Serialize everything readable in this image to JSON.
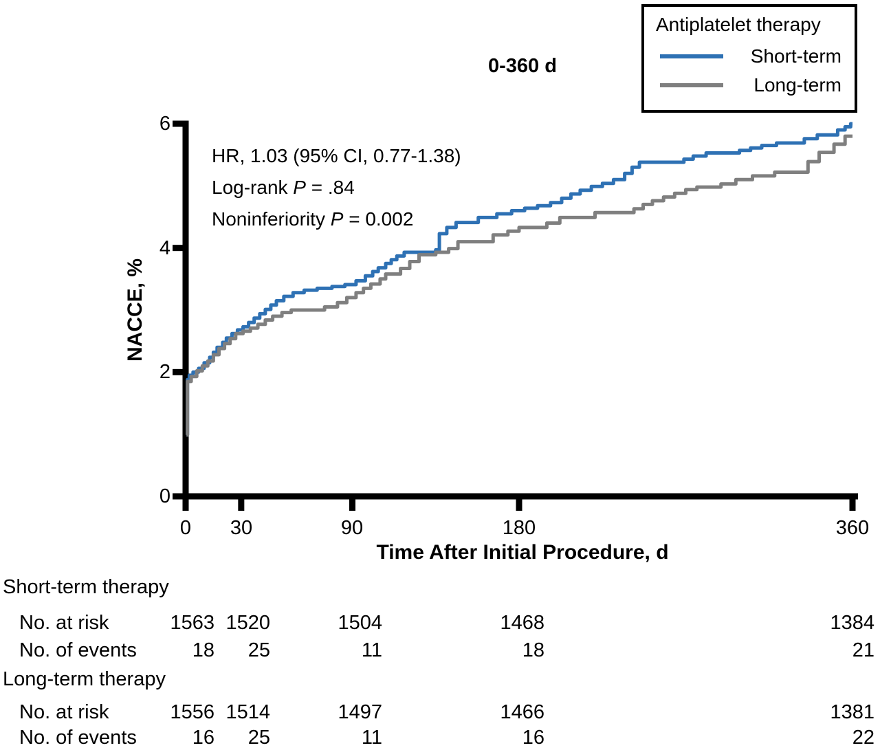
{
  "title_label": "0-360 d",
  "legend": {
    "title": "Antiplatelet therapy"
  },
  "annotation": {
    "line1": "HR, 1.03 (95% CI, 0.77-1.38)",
    "line2_prefix": "Log-rank ",
    "line2_italic": "P",
    "line2_suffix": " = .84",
    "line3_prefix": "Noninferiority ",
    "line3_italic": "P",
    "line3_suffix": " = 0.002"
  },
  "chart_data": {
    "type": "line",
    "subtype": "kaplan-meier-step",
    "title": "0-360 d",
    "xlabel": "Time After Initial Procedure, d",
    "ylabel": "NACCE, %",
    "xlim": [
      0,
      360
    ],
    "ylim": [
      0,
      6
    ],
    "xticks": [
      0,
      30,
      90,
      180,
      360
    ],
    "yticks": [
      0,
      2,
      4,
      6
    ],
    "grid": false,
    "legend_position": "top-right",
    "annotations": [
      "HR, 1.03 (95% CI, 0.77-1.38)",
      "Log-rank P = .84",
      "Noninferiority P = 0.002"
    ],
    "series": [
      {
        "name": "Short-term",
        "color": "#2e71b4",
        "step": true,
        "points": [
          [
            0.5,
            0.99
          ],
          [
            1,
            1.88
          ],
          [
            2,
            1.95
          ],
          [
            4,
            2.0
          ],
          [
            7,
            2.06
          ],
          [
            10,
            2.15
          ],
          [
            13,
            2.24
          ],
          [
            15,
            2.32
          ],
          [
            17,
            2.4
          ],
          [
            20,
            2.48
          ],
          [
            22,
            2.55
          ],
          [
            25,
            2.62
          ],
          [
            28,
            2.68
          ],
          [
            31,
            2.73
          ],
          [
            34,
            2.8
          ],
          [
            37,
            2.87
          ],
          [
            40,
            2.94
          ],
          [
            43,
            3.01
          ],
          [
            46,
            3.08
          ],
          [
            49,
            3.15
          ],
          [
            53,
            3.22
          ],
          [
            58,
            3.28
          ],
          [
            64,
            3.32
          ],
          [
            71,
            3.35
          ],
          [
            79,
            3.38
          ],
          [
            86,
            3.41
          ],
          [
            92,
            3.47
          ],
          [
            97,
            3.55
          ],
          [
            101,
            3.62
          ],
          [
            104,
            3.68
          ],
          [
            108,
            3.75
          ],
          [
            111,
            3.81
          ],
          [
            114,
            3.87
          ],
          [
            118,
            3.93
          ],
          [
            135,
            3.97
          ],
          [
            137,
            4.23
          ],
          [
            141,
            4.33
          ],
          [
            146,
            4.41
          ],
          [
            158,
            4.49
          ],
          [
            168,
            4.55
          ],
          [
            176,
            4.6
          ],
          [
            183,
            4.64
          ],
          [
            190,
            4.68
          ],
          [
            197,
            4.73
          ],
          [
            203,
            4.8
          ],
          [
            208,
            4.87
          ],
          [
            213,
            4.93
          ],
          [
            219,
            4.99
          ],
          [
            225,
            5.04
          ],
          [
            231,
            5.1
          ],
          [
            237,
            5.2
          ],
          [
            241,
            5.3
          ],
          [
            245,
            5.38
          ],
          [
            269,
            5.43
          ],
          [
            274,
            5.48
          ],
          [
            281,
            5.53
          ],
          [
            299,
            5.57
          ],
          [
            305,
            5.61
          ],
          [
            311,
            5.65
          ],
          [
            319,
            5.69
          ],
          [
            334,
            5.76
          ],
          [
            341,
            5.82
          ],
          [
            352,
            5.9
          ],
          [
            356,
            5.95
          ],
          [
            359,
            6.0
          ],
          [
            360,
            6.0
          ]
        ]
      },
      {
        "name": "Long-term",
        "color": "#7f7f7f",
        "step": true,
        "points": [
          [
            0.5,
            0.99
          ],
          [
            1,
            1.85
          ],
          [
            3,
            1.93
          ],
          [
            6,
            2.02
          ],
          [
            9,
            2.1
          ],
          [
            12,
            2.18
          ],
          [
            15,
            2.28
          ],
          [
            18,
            2.38
          ],
          [
            21,
            2.46
          ],
          [
            24,
            2.54
          ],
          [
            27,
            2.62
          ],
          [
            31,
            2.66
          ],
          [
            35,
            2.71
          ],
          [
            39,
            2.77
          ],
          [
            43,
            2.84
          ],
          [
            47,
            2.9
          ],
          [
            52,
            2.96
          ],
          [
            57,
            3.0
          ],
          [
            75,
            3.05
          ],
          [
            82,
            3.12
          ],
          [
            87,
            3.2
          ],
          [
            92,
            3.28
          ],
          [
            96,
            3.35
          ],
          [
            100,
            3.42
          ],
          [
            105,
            3.5
          ],
          [
            108,
            3.58
          ],
          [
            116,
            3.67
          ],
          [
            121,
            3.78
          ],
          [
            126,
            3.89
          ],
          [
            135,
            3.93
          ],
          [
            142,
            3.99
          ],
          [
            147,
            4.1
          ],
          [
            166,
            4.21
          ],
          [
            174,
            4.27
          ],
          [
            180,
            4.33
          ],
          [
            195,
            4.4
          ],
          [
            202,
            4.49
          ],
          [
            221,
            4.57
          ],
          [
            242,
            4.63
          ],
          [
            247,
            4.7
          ],
          [
            252,
            4.76
          ],
          [
            258,
            4.82
          ],
          [
            264,
            4.88
          ],
          [
            270,
            4.94
          ],
          [
            276,
            4.98
          ],
          [
            289,
            5.03
          ],
          [
            297,
            5.1
          ],
          [
            306,
            5.16
          ],
          [
            318,
            5.22
          ],
          [
            336,
            5.39
          ],
          [
            342,
            5.54
          ],
          [
            350,
            5.67
          ],
          [
            356,
            5.8
          ],
          [
            360,
            5.8
          ]
        ]
      }
    ]
  },
  "risk_table": {
    "groups": [
      {
        "label": "Short-term therapy",
        "rows": [
          {
            "label": "No. at risk",
            "values": [
              "1563",
              "1520",
              "1504",
              "1468",
              "1384"
            ]
          },
          {
            "label": "No. of events",
            "values": [
              "18",
              "25",
              "11",
              "18",
              "21"
            ]
          }
        ]
      },
      {
        "label": "Long-term therapy",
        "rows": [
          {
            "label": "No. at risk",
            "values": [
              "1556",
              "1514",
              "1497",
              "1466",
              "1381"
            ]
          },
          {
            "label": "No. of events",
            "values": [
              "16",
              "25",
              "11",
              "16",
              "22"
            ]
          }
        ]
      }
    ]
  }
}
